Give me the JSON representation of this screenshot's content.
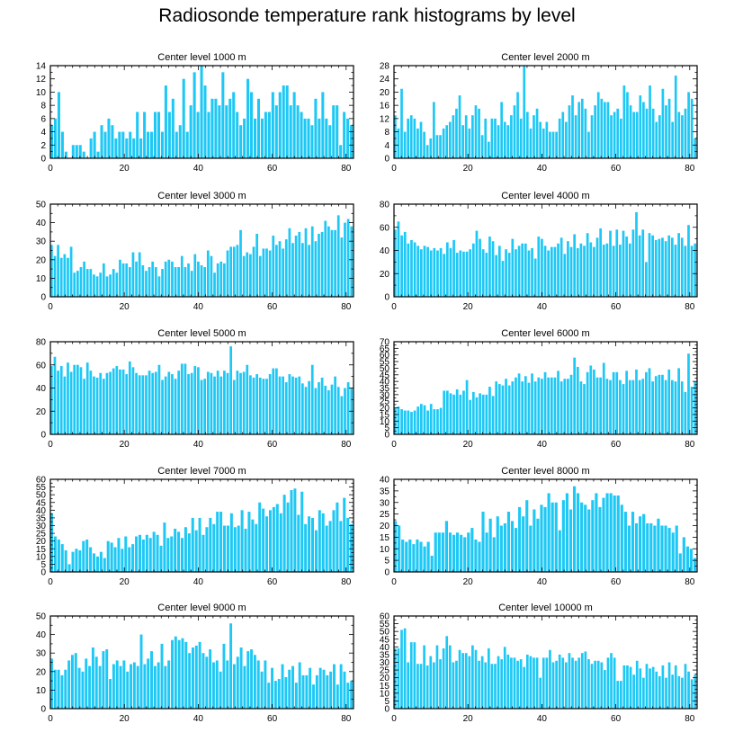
{
  "title": "Radiosonde temperature rank histograms by level",
  "colors": {
    "bar": "#1ec8f5",
    "axis": "#000000",
    "background": "#ffffff"
  },
  "chart_data": [
    {
      "type": "bar",
      "title": "Center level 1000 m",
      "xlim": [
        0,
        82
      ],
      "ylim": [
        0,
        14
      ],
      "xticks": [
        0,
        20,
        40,
        60,
        80
      ],
      "yticks": [
        0,
        2,
        4,
        6,
        8,
        10,
        12,
        14
      ],
      "xlabel": "",
      "ylabel": "",
      "values": [
        5,
        6,
        10,
        4,
        1,
        0,
        2,
        2,
        2,
        1,
        0,
        3,
        4,
        1,
        5,
        4,
        6,
        5,
        3,
        4,
        4,
        3,
        4,
        3,
        7,
        3,
        7,
        4,
        4,
        7,
        7,
        4,
        11,
        7,
        9,
        4,
        5,
        12,
        4,
        8,
        13,
        7,
        14,
        11,
        7,
        9,
        9,
        8,
        13,
        8,
        9,
        10,
        7,
        5,
        6,
        12,
        10,
        6,
        9,
        6,
        7,
        7,
        10,
        8,
        10,
        11,
        11,
        8,
        10,
        8,
        7,
        6,
        6,
        5,
        9,
        6,
        10,
        6,
        5,
        8,
        8,
        2,
        7,
        6,
        5
      ]
    },
    {
      "type": "bar",
      "title": "Center level 2000 m",
      "xlim": [
        0,
        82
      ],
      "ylim": [
        0,
        28
      ],
      "xticks": [
        0,
        20,
        40,
        60,
        80
      ],
      "yticks": [
        0,
        4,
        8,
        12,
        16,
        20,
        24,
        28
      ],
      "xlabel": "",
      "ylabel": "",
      "values": [
        13,
        9,
        21,
        8,
        12,
        13,
        12,
        9,
        11,
        8,
        4,
        6,
        17,
        7,
        7,
        9,
        10,
        11,
        13,
        15,
        19,
        10,
        13,
        9,
        13,
        16,
        15,
        7,
        12,
        5,
        12,
        12,
        10,
        17,
        11,
        10,
        13,
        16,
        20,
        12,
        28,
        14,
        9,
        13,
        15,
        11,
        9,
        11,
        8,
        8,
        8,
        12,
        14,
        11,
        16,
        19,
        13,
        17,
        18,
        15,
        8,
        13,
        16,
        20,
        18,
        17,
        17,
        13,
        14,
        15,
        12,
        22,
        20,
        16,
        14,
        14,
        19,
        17,
        15,
        22,
        15,
        11,
        13,
        21,
        16,
        18,
        11,
        25,
        14,
        13,
        15,
        20,
        18,
        6
      ]
    },
    {
      "type": "bar",
      "title": "Center level 3000 m",
      "xlim": [
        0,
        82
      ],
      "ylim": [
        0,
        50
      ],
      "xticks": [
        0,
        20,
        40,
        60,
        80
      ],
      "yticks": [
        0,
        10,
        20,
        30,
        40,
        50
      ],
      "xlabel": "",
      "ylabel": "",
      "values": [
        28,
        22,
        28,
        21,
        23,
        21,
        27,
        13,
        14,
        16,
        19,
        15,
        15,
        12,
        11,
        13,
        18,
        11,
        12,
        15,
        13,
        20,
        18,
        18,
        16,
        24,
        19,
        24,
        17,
        14,
        16,
        19,
        16,
        11,
        15,
        19,
        20,
        19,
        16,
        16,
        22,
        16,
        18,
        14,
        23,
        19,
        17,
        16,
        25,
        22,
        13,
        18,
        19,
        18,
        25,
        27,
        27,
        28,
        36,
        22,
        24,
        23,
        27,
        34,
        22,
        26,
        26,
        25,
        33,
        28,
        30,
        26,
        31,
        37,
        29,
        33,
        35,
        29,
        37,
        28,
        38,
        30,
        34,
        35,
        41,
        38,
        36,
        36,
        44,
        32,
        40,
        42,
        38
      ]
    },
    {
      "type": "bar",
      "title": "Center level 4000 m",
      "xlim": [
        0,
        82
      ],
      "ylim": [
        0,
        80
      ],
      "xticks": [
        0,
        20,
        40,
        60,
        80
      ],
      "yticks": [
        0,
        20,
        40,
        60,
        80
      ],
      "xlabel": "",
      "ylabel": "",
      "values": [
        58,
        65,
        53,
        56,
        46,
        49,
        47,
        44,
        41,
        44,
        43,
        40,
        42,
        40,
        42,
        37,
        47,
        42,
        49,
        38,
        40,
        39,
        39,
        41,
        46,
        57,
        50,
        41,
        38,
        52,
        48,
        36,
        44,
        31,
        41,
        38,
        50,
        41,
        44,
        46,
        46,
        40,
        42,
        33,
        52,
        50,
        44,
        40,
        43,
        43,
        46,
        51,
        37,
        48,
        43,
        54,
        42,
        46,
        44,
        55,
        47,
        43,
        51,
        59,
        45,
        46,
        57,
        44,
        58,
        45,
        57,
        52,
        46,
        58,
        73,
        53,
        58,
        30,
        55,
        53,
        49,
        50,
        51,
        48,
        53,
        51,
        45,
        55,
        51,
        44,
        62,
        44,
        46
      ]
    },
    {
      "type": "bar",
      "title": "Center level 5000 m",
      "xlim": [
        0,
        82
      ],
      "ylim": [
        0,
        80
      ],
      "xticks": [
        0,
        20,
        40,
        60,
        80
      ],
      "yticks": [
        0,
        20,
        40,
        60,
        80
      ],
      "xlabel": "",
      "ylabel": "",
      "values": [
        59,
        67,
        55,
        59,
        50,
        62,
        54,
        60,
        60,
        58,
        48,
        62,
        55,
        50,
        49,
        53,
        48,
        53,
        54,
        57,
        59,
        56,
        56,
        52,
        63,
        58,
        53,
        51,
        51,
        51,
        55,
        53,
        54,
        60,
        47,
        50,
        54,
        52,
        48,
        55,
        61,
        61,
        52,
        53,
        59,
        58,
        47,
        48,
        54,
        53,
        50,
        55,
        50,
        55,
        53,
        76,
        47,
        55,
        53,
        54,
        60,
        51,
        49,
        52,
        49,
        48,
        48,
        52,
        57,
        57,
        50,
        50,
        45,
        52,
        50,
        49,
        50,
        44,
        41,
        46,
        60,
        40,
        45,
        49,
        42,
        38,
        43,
        50,
        41,
        33,
        40,
        45,
        40
      ]
    },
    {
      "type": "bar",
      "title": "Center level 6000 m",
      "xlim": [
        0,
        82
      ],
      "ylim": [
        0,
        70
      ],
      "xticks": [
        0,
        20,
        40,
        60,
        80
      ],
      "yticks": [
        0,
        5,
        10,
        15,
        20,
        25,
        30,
        35,
        40,
        45,
        50,
        55,
        60,
        65,
        70
      ],
      "xlabel": "",
      "ylabel": "",
      "values": [
        20,
        21,
        19,
        18,
        18,
        17,
        18,
        21,
        23,
        22,
        18,
        23,
        19,
        19,
        20,
        33,
        33,
        31,
        30,
        34,
        30,
        33,
        41,
        26,
        32,
        28,
        31,
        30,
        30,
        36,
        29,
        40,
        38,
        37,
        42,
        37,
        40,
        43,
        46,
        40,
        44,
        39,
        46,
        40,
        43,
        42,
        47,
        43,
        43,
        43,
        48,
        40,
        42,
        42,
        45,
        58,
        51,
        40,
        38,
        47,
        52,
        49,
        43,
        43,
        54,
        42,
        41,
        47,
        47,
        41,
        38,
        48,
        41,
        41,
        49,
        41,
        42,
        47,
        50,
        40,
        44,
        45,
        45,
        41,
        49,
        41,
        40,
        50,
        40,
        32,
        61,
        36,
        40
      ]
    },
    {
      "type": "bar",
      "title": "Center level 7000 m",
      "xlim": [
        0,
        82
      ],
      "ylim": [
        0,
        60
      ],
      "xticks": [
        0,
        20,
        40,
        60,
        80
      ],
      "yticks": [
        0,
        5,
        10,
        15,
        20,
        25,
        30,
        35,
        40,
        45,
        50,
        55,
        60
      ],
      "xlabel": "",
      "ylabel": "",
      "values": [
        38,
        23,
        21,
        18,
        14,
        5,
        13,
        15,
        14,
        20,
        21,
        16,
        12,
        10,
        13,
        9,
        20,
        19,
        16,
        22,
        15,
        23,
        16,
        18,
        23,
        24,
        21,
        24,
        22,
        26,
        24,
        17,
        32,
        22,
        23,
        28,
        26,
        22,
        29,
        25,
        35,
        27,
        35,
        24,
        29,
        35,
        31,
        39,
        39,
        30,
        30,
        38,
        29,
        30,
        40,
        28,
        39,
        34,
        31,
        45,
        41,
        36,
        40,
        42,
        44,
        38,
        50,
        45,
        53,
        54,
        37,
        52,
        31,
        36,
        35,
        27,
        40,
        38,
        30,
        33,
        40,
        45,
        33,
        48,
        35,
        31
      ]
    },
    {
      "type": "bar",
      "title": "Center level 8000 m",
      "xlim": [
        0,
        82
      ],
      "ylim": [
        0,
        40
      ],
      "xticks": [
        0,
        20,
        40,
        60,
        80
      ],
      "yticks": [
        0,
        5,
        10,
        15,
        20,
        25,
        30,
        35,
        40
      ],
      "xlabel": "",
      "ylabel": "",
      "values": [
        22,
        20,
        14,
        13,
        14,
        12,
        14,
        13,
        11,
        13,
        7,
        17,
        17,
        17,
        22,
        17,
        16,
        17,
        16,
        15,
        17,
        19,
        14,
        13,
        26,
        17,
        23,
        15,
        24,
        20,
        21,
        26,
        22,
        19,
        28,
        24,
        31,
        20,
        27,
        23,
        29,
        28,
        34,
        30,
        30,
        18,
        31,
        34,
        27,
        37,
        34,
        30,
        29,
        27,
        31,
        34,
        28,
        32,
        34,
        34,
        33,
        33,
        29,
        26,
        20,
        26,
        21,
        24,
        25,
        21,
        21,
        20,
        23,
        20,
        20,
        19,
        17,
        20,
        8,
        15,
        11,
        10,
        6
      ]
    },
    {
      "type": "bar",
      "title": "Center level 9000 m",
      "xlim": [
        0,
        82
      ],
      "ylim": [
        0,
        50
      ],
      "xticks": [
        0,
        20,
        40,
        60,
        80
      ],
      "yticks": [
        0,
        10,
        20,
        30,
        40,
        50
      ],
      "xlabel": "",
      "ylabel": "",
      "values": [
        27,
        21,
        21,
        18,
        21,
        26,
        29,
        30,
        22,
        20,
        27,
        23,
        33,
        28,
        23,
        31,
        32,
        16,
        24,
        26,
        23,
        26,
        20,
        24,
        25,
        23,
        40,
        24,
        27,
        31,
        23,
        25,
        35,
        23,
        26,
        37,
        39,
        37,
        38,
        36,
        30,
        33,
        34,
        36,
        30,
        28,
        32,
        25,
        26,
        20,
        35,
        26,
        46,
        24,
        28,
        33,
        23,
        31,
        32,
        29,
        26,
        20,
        26,
        14,
        22,
        15,
        16,
        24,
        17,
        21,
        23,
        14,
        25,
        18,
        18,
        22,
        13,
        18,
        22,
        21,
        18,
        20,
        24,
        13,
        24,
        20,
        14,
        15
      ]
    },
    {
      "type": "bar",
      "title": "Center level 10000 m",
      "xlim": [
        0,
        82
      ],
      "ylim": [
        0,
        60
      ],
      "xticks": [
        0,
        20,
        40,
        60,
        80
      ],
      "yticks": [
        0,
        5,
        10,
        15,
        20,
        25,
        30,
        35,
        40,
        45,
        50,
        55,
        60
      ],
      "xlabel": "",
      "ylabel": "",
      "values": [
        39,
        39,
        51,
        52,
        30,
        43,
        43,
        29,
        29,
        41,
        28,
        34,
        30,
        41,
        32,
        39,
        47,
        41,
        30,
        31,
        38,
        36,
        36,
        34,
        41,
        38,
        31,
        34,
        30,
        39,
        29,
        29,
        34,
        32,
        40,
        35,
        33,
        33,
        31,
        32,
        27,
        35,
        34,
        33,
        33,
        20,
        33,
        33,
        38,
        30,
        31,
        35,
        33,
        30,
        36,
        33,
        31,
        33,
        36,
        37,
        32,
        29,
        31,
        31,
        30,
        25,
        33,
        36,
        33,
        18,
        18,
        28,
        28,
        27,
        22,
        31,
        26,
        20,
        29,
        26,
        27,
        24,
        21,
        28,
        20,
        30,
        22,
        28,
        21,
        20,
        29,
        24,
        19,
        22
      ]
    }
  ]
}
